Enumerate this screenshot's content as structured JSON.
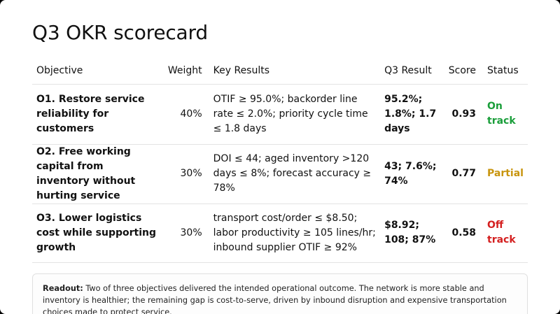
{
  "slide": {
    "title": "Q3 OKR scorecard"
  },
  "table": {
    "headers": {
      "objective": "Objective",
      "weight": "Weight",
      "key_results": "Key Results",
      "result": "Q3 Result",
      "score": "Score",
      "status": "Status"
    },
    "rows": [
      {
        "objective": "O1. Restore service reliability for customers",
        "weight": "40%",
        "key_results": "OTIF ≥ 95.0%; backorder line rate ≤ 2.0%; priority cycle time ≤ 1.8 days",
        "result": "95.2%; 1.8%; 1.7 days",
        "score": "0.93",
        "status": "On track",
        "status_color": "#1a9e3a"
      },
      {
        "objective": "O2. Free working capital from inventory without hurting service",
        "weight": "30%",
        "key_results": "DOI ≤ 44; aged inventory >120 days ≤ 8%; forecast accuracy ≥ 78%",
        "result": "43; 7.6%; 74%",
        "score": "0.77",
        "status": "Partial",
        "status_color": "#c8950f"
      },
      {
        "objective": "O3. Lower logistics cost while supporting growth",
        "weight": "30%",
        "key_results": "transport cost/order ≤ $8.50; labor productivity ≥ 105 lines/hr; inbound supplier OTIF ≥ 92%",
        "result": "$8.92; 108; 87%",
        "score": "0.58",
        "status": "Off track",
        "status_color": "#d42020"
      }
    ]
  },
  "readout": {
    "label": "Readout:",
    "text": " Two of three objectives delivered the intended operational outcome. The network is more stable and inventory is healthier; the remaining gap is cost-to-serve, driven by inbound disruption and expensive transportation choices made to protect service."
  }
}
